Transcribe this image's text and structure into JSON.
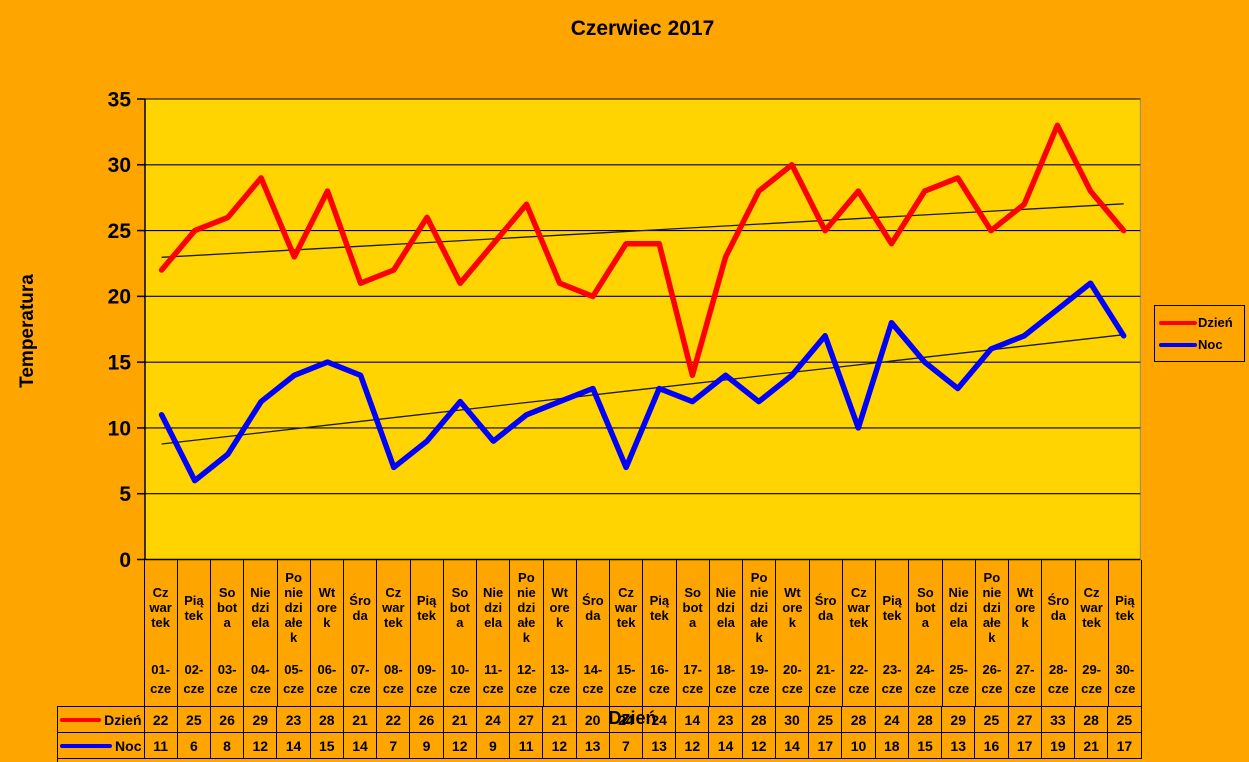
{
  "title": "Czerwiec 2017",
  "colors": {
    "outer_background": "#FFA500",
    "plot_background": "#FFD400",
    "gridline": "#000000",
    "trendline": "#1a1a1a",
    "day_series": "#FF0000",
    "night_series": "#0000FF"
  },
  "legend": {
    "position": "right",
    "items": [
      {
        "label": "Dzień",
        "color": "#FF0000"
      },
      {
        "label": "Noc",
        "color": "#0000FF"
      }
    ]
  },
  "chart_data": {
    "type": "line",
    "title": "Czerwiec 2017",
    "xlabel": "Dzień",
    "ylabel": "Temperatura",
    "ylim": [
      0,
      35
    ],
    "yticks": [
      0,
      5,
      10,
      15,
      20,
      25,
      30,
      35
    ],
    "grid": true,
    "legend_position": "right",
    "categories_dates": [
      "01-cze",
      "02-cze",
      "03-cze",
      "04-cze",
      "05-cze",
      "06-cze",
      "07-cze",
      "08-cze",
      "09-cze",
      "10-cze",
      "11-cze",
      "12-cze",
      "13-cze",
      "14-cze",
      "15-cze",
      "16-cze",
      "17-cze",
      "18-cze",
      "19-cze",
      "20-cze",
      "21-cze",
      "22-cze",
      "23-cze",
      "24-cze",
      "25-cze",
      "26-cze",
      "27-cze",
      "28-cze",
      "29-cze",
      "30-cze"
    ],
    "categories_days": [
      "Czwartek",
      "Piątek",
      "Sobota",
      "Niedziela",
      "Poniedziałek",
      "Wtorek",
      "Środa",
      "Czwartek",
      "Piątek",
      "Sobota",
      "Niedziela",
      "Poniedziałek",
      "Wtorek",
      "Środa",
      "Czwartek",
      "Piątek",
      "Sobota",
      "Niedziela",
      "Poniedziałek",
      "Wtorek",
      "Środa",
      "Czwartek",
      "Piątek",
      "Sobota",
      "Niedziela",
      "Poniedziałek",
      "Wtorek",
      "Środa",
      "Czwartek",
      "Piątek"
    ],
    "series": [
      {
        "name": "Dzień",
        "color": "#FF0000",
        "values": [
          22,
          25,
          26,
          29,
          23,
          28,
          21,
          22,
          26,
          21,
          24,
          27,
          21,
          20,
          24,
          24,
          14,
          23,
          28,
          30,
          25,
          28,
          24,
          28,
          29,
          25,
          27,
          33,
          28,
          25
        ],
        "trendline": true
      },
      {
        "name": "Noc",
        "color": "#0000FF",
        "values": [
          11,
          6,
          8,
          12,
          14,
          15,
          14,
          7,
          9,
          12,
          9,
          11,
          12,
          13,
          7,
          13,
          12,
          14,
          12,
          14,
          17,
          10,
          18,
          15,
          13,
          16,
          17,
          19,
          21,
          17
        ],
        "trendline": true
      }
    ]
  },
  "day_wrap": {
    "Czwartek": "Cz\nwar\ntek",
    "Piątek": "Pią\ntek",
    "Sobota": "So\nbot\na",
    "Niedziela": "Nie\ndzi\nela",
    "Poniedziałek": "Po\nnie\ndzi\nałe\nk",
    "Wtorek": "Wt\nore\nk",
    "Środa": "Śro\nda"
  }
}
